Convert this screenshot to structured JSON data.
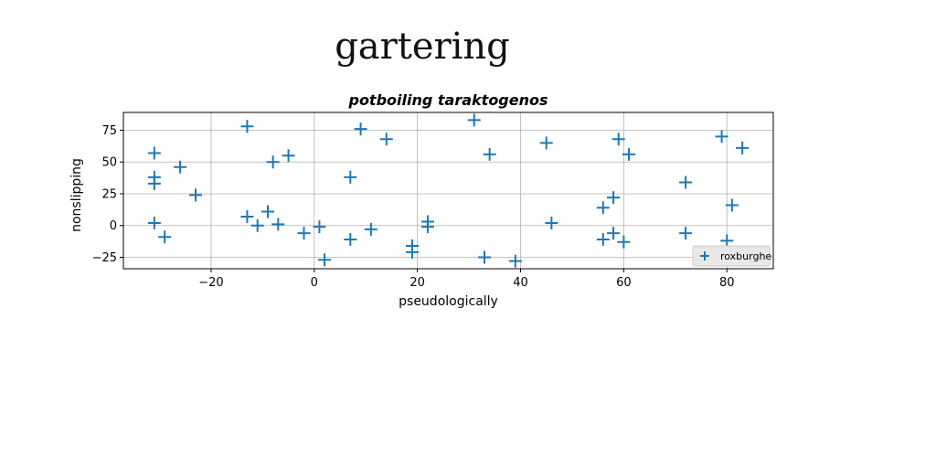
{
  "figure": {
    "suptitle": "gartering"
  },
  "chart_data": {
    "type": "scatter",
    "title": "potboiling taraktogenos",
    "xlabel": "pseudologically",
    "ylabel": "nonslipping",
    "xlim": [
      -37,
      89
    ],
    "ylim": [
      -34,
      89
    ],
    "xticks": [
      -20,
      0,
      20,
      40,
      60,
      80
    ],
    "yticks": [
      -25,
      0,
      25,
      50,
      75
    ],
    "xtick_labels": [
      "−20",
      "0",
      "20",
      "40",
      "60",
      "80"
    ],
    "ytick_labels": [
      "−25",
      "0",
      "25",
      "50",
      "75"
    ],
    "grid": true,
    "legend": {
      "position": "lower right"
    },
    "series": [
      {
        "name": "roxburghe",
        "marker": "plus",
        "color": "#1f77b4",
        "points": [
          [
            -31,
            57
          ],
          [
            -31,
            38
          ],
          [
            -31,
            33
          ],
          [
            -31,
            2
          ],
          [
            -29,
            -9
          ],
          [
            -26,
            46
          ],
          [
            -23,
            24
          ],
          [
            -13,
            78
          ],
          [
            -13,
            7
          ],
          [
            -11,
            0
          ],
          [
            -9,
            11
          ],
          [
            -8,
            50
          ],
          [
            -7,
            1
          ],
          [
            -5,
            55
          ],
          [
            -2,
            -6
          ],
          [
            1,
            -1
          ],
          [
            2,
            -27
          ],
          [
            7,
            38
          ],
          [
            7,
            -11
          ],
          [
            9,
            76
          ],
          [
            11,
            -3
          ],
          [
            14,
            68
          ],
          [
            19,
            -16
          ],
          [
            19,
            -21
          ],
          [
            22,
            3
          ],
          [
            22,
            -1
          ],
          [
            31,
            83
          ],
          [
            33,
            -25
          ],
          [
            34,
            56
          ],
          [
            39,
            -28
          ],
          [
            45,
            65
          ],
          [
            46,
            2
          ],
          [
            56,
            14
          ],
          [
            56,
            -11
          ],
          [
            58,
            22
          ],
          [
            58,
            -6
          ],
          [
            59,
            68
          ],
          [
            60,
            -13
          ],
          [
            61,
            56
          ],
          [
            72,
            34
          ],
          [
            72,
            -6
          ],
          [
            79,
            70
          ],
          [
            80,
            -12
          ],
          [
            81,
            16
          ],
          [
            83,
            61
          ]
        ]
      }
    ]
  }
}
